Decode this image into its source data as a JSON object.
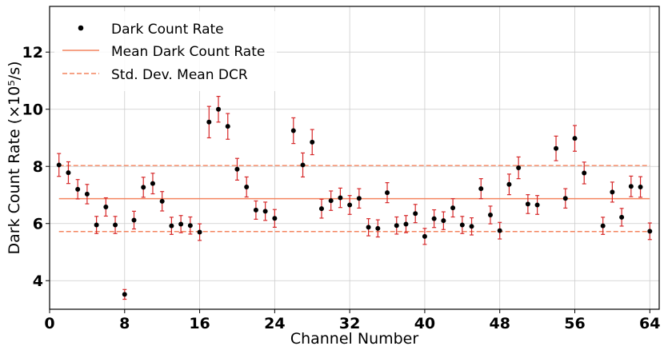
{
  "chart_data": {
    "type": "scatter",
    "xlabel": "Channel Number",
    "ylabel": "Dark Count Rate (×10⁵/s)",
    "xlim": [
      0,
      65
    ],
    "ylim": [
      3,
      13.6
    ],
    "x_ticks": [
      0,
      8,
      16,
      24,
      32,
      40,
      48,
      56,
      64
    ],
    "y_ticks": [
      4,
      6,
      8,
      10,
      12
    ],
    "grid": true,
    "legend_position": "top-left",
    "legend": [
      {
        "label": "Dark Count Rate",
        "style": "marker"
      },
      {
        "label": "Mean Dark Count Rate",
        "style": "solid"
      },
      {
        "label": "Std. Dev. Mean DCR",
        "style": "dashed"
      }
    ],
    "mean": 6.87,
    "std_band": [
      5.72,
      8.03
    ],
    "colors": {
      "points": "#000000",
      "error_bars": "#d62728",
      "mean_line": "#f4845f",
      "std_line": "#f4845f",
      "grid": "#cccccc"
    },
    "series": [
      {
        "name": "Dark Count Rate",
        "x": [
          1,
          2,
          3,
          4,
          5,
          6,
          7,
          8,
          9,
          10,
          11,
          12,
          13,
          14,
          15,
          16,
          17,
          18,
          19,
          20,
          21,
          22,
          23,
          24,
          25,
          26,
          27,
          28,
          29,
          30,
          31,
          32,
          33,
          34,
          35,
          36,
          37,
          38,
          39,
          40,
          41,
          42,
          43,
          44,
          45,
          46,
          47,
          48,
          49,
          50,
          51,
          52,
          53,
          54,
          55,
          56,
          57,
          58,
          59,
          60,
          61,
          62,
          63,
          64
        ],
        "y": [
          8.05,
          7.78,
          7.2,
          7.03,
          5.95,
          6.58,
          5.95,
          3.52,
          6.12,
          7.27,
          7.4,
          6.78,
          5.92,
          5.98,
          5.93,
          5.7,
          9.55,
          10.0,
          9.4,
          7.9,
          7.28,
          6.47,
          6.43,
          6.18,
          null,
          9.25,
          8.05,
          8.85,
          6.52,
          6.8,
          6.9,
          6.65,
          6.88,
          5.87,
          5.83,
          7.08,
          5.93,
          5.98,
          6.35,
          5.55,
          6.17,
          6.1,
          6.55,
          5.95,
          5.9,
          7.22,
          6.3,
          5.75,
          7.37,
          7.95,
          6.68,
          6.65,
          null,
          8.63,
          6.88,
          8.98,
          7.77,
          null,
          5.92,
          7.1,
          6.22,
          7.3,
          7.28,
          5.73
        ],
        "yerr": [
          0.4,
          0.38,
          0.34,
          0.34,
          0.3,
          0.32,
          0.3,
          0.17,
          0.31,
          0.35,
          0.36,
          0.34,
          0.3,
          0.3,
          0.3,
          0.29,
          0.55,
          0.45,
          0.45,
          0.38,
          0.35,
          0.32,
          0.32,
          0.31,
          null,
          0.45,
          0.42,
          0.44,
          0.33,
          0.34,
          0.34,
          0.33,
          0.34,
          0.3,
          0.3,
          0.35,
          0.3,
          0.3,
          0.32,
          0.28,
          0.31,
          0.31,
          0.32,
          0.3,
          0.3,
          0.35,
          0.31,
          0.29,
          0.36,
          0.38,
          0.33,
          0.33,
          null,
          0.43,
          0.34,
          0.45,
          0.38,
          null,
          0.3,
          0.35,
          0.31,
          0.36,
          0.36,
          0.29
        ]
      }
    ]
  }
}
